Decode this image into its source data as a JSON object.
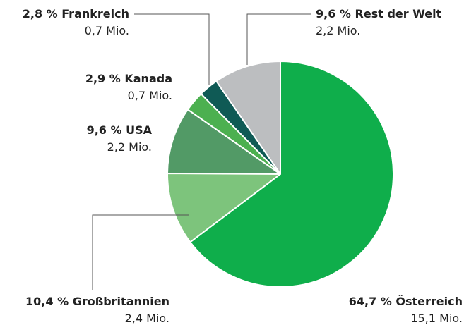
{
  "chart_data": {
    "type": "pie",
    "categories": [
      "Österreich",
      "Großbritannien",
      "USA",
      "Kanada",
      "Frankreich",
      "Rest der Welt"
    ],
    "values": [
      64.7,
      10.4,
      9.6,
      2.9,
      2.8,
      9.6
    ],
    "value_labels": [
      "64,7 %",
      "10,4 %",
      "9,6 %",
      "2,9 %",
      "2,8 %",
      "9,6 %"
    ],
    "counts": [
      15.1,
      2.4,
      2.2,
      0.7,
      0.7,
      2.2
    ],
    "count_labels": [
      "15,1 Mio.",
      "2,4 Mio.",
      "2,2 Mio.",
      "0,7 Mio.",
      "0,7 Mio.",
      "2,2 Mio."
    ],
    "colors": [
      "#0fae4b",
      "#7dc47c",
      "#529a66",
      "#4cb050",
      "#0f5a55",
      "#bcbec0"
    ]
  }
}
